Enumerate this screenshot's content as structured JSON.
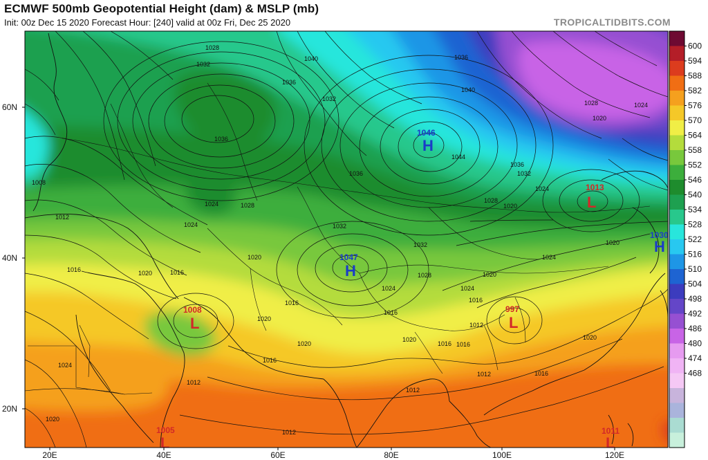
{
  "header": {
    "title": "ECMWF 500mb Geopotential Height (dam) & MSLP (mb)",
    "subtitle": "Init: 00z Dec 15 2020   Forecast Hour: [240]   valid at 00z Fri, Dec 25 2020",
    "credit": "TROPICALTIDBITS.COM"
  },
  "axes": {
    "lat_labels": [
      "60N",
      "40N",
      "20N"
    ],
    "lon_labels": [
      "20E",
      "40E",
      "60E",
      "80E",
      "100E",
      "120E"
    ]
  },
  "colorbar": {
    "levels": [
      "600",
      "594",
      "588",
      "582",
      "576",
      "570",
      "564",
      "558",
      "552",
      "546",
      "540",
      "534",
      "528",
      "522",
      "516",
      "510",
      "504",
      "498",
      "492",
      "486",
      "480",
      "474",
      "468"
    ],
    "colors": [
      "#6e0a32",
      "#b41e28",
      "#dc3c1e",
      "#f06e14",
      "#f5a01e",
      "#f5c828",
      "#f0ee46",
      "#b4dc3c",
      "#78c83c",
      "#3cae3c",
      "#1e8c2d",
      "#1ea050",
      "#28c88c",
      "#28e6dc",
      "#28c8f0",
      "#1e96e6",
      "#1e64d2",
      "#3c3cbe",
      "#6446c8",
      "#9650d2",
      "#c864e6",
      "#e69bf0",
      "#f0b4f5",
      "#f5c8f5",
      "#c8b4dc",
      "#aab4dc",
      "#aadcd2",
      "#c8f0dc"
    ]
  },
  "pressure_centers": [
    {
      "type": "H",
      "value": "1046",
      "color": "#1a3cc8"
    },
    {
      "type": "H",
      "value": "1047",
      "color": "#1a3cc8"
    },
    {
      "type": "H",
      "value": "1030",
      "color": "#1a3cc8"
    },
    {
      "type": "L",
      "value": "1013",
      "color": "#d22828"
    },
    {
      "type": "L",
      "value": "1008",
      "color": "#d22828"
    },
    {
      "type": "L",
      "value": "997",
      "color": "#d22828"
    },
    {
      "type": "L",
      "value": "1005",
      "color": "#d22828"
    },
    {
      "type": "L",
      "value": "1011",
      "color": "#d22828"
    }
  ],
  "isobar_labels": [
    "1028",
    "1032",
    "1036",
    "1040",
    "1036",
    "1032",
    "1036",
    "1040",
    "1044",
    "1036",
    "1032",
    "1028",
    "1024",
    "1028",
    "1024",
    "1020",
    "1008",
    "1012",
    "1024",
    "1016",
    "1020",
    "1016",
    "1020",
    "1024",
    "1028",
    "1032",
    "1036",
    "1020",
    "1016",
    "1024",
    "1020",
    "1024",
    "1016",
    "1020",
    "1012",
    "1016",
    "1012",
    "1012",
    "1016",
    "1024",
    "1020",
    "1016",
    "1012",
    "1020",
    "1012",
    "1016",
    "1020",
    "1016",
    "1020",
    "1032",
    "1028",
    "1020",
    "1024"
  ]
}
